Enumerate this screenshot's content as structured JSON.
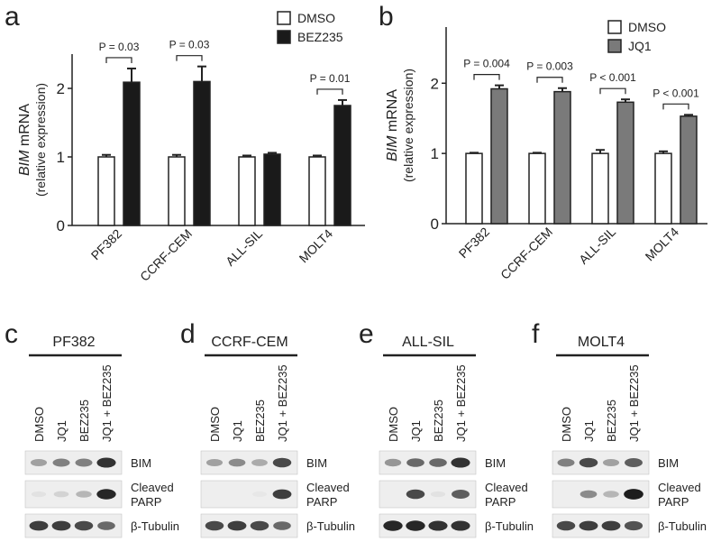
{
  "chart_data": [
    {
      "type": "bar",
      "panel": "a",
      "ylabel": {
        "italic": "BIM",
        "text": "mRNA"
      },
      "ylabel2": "(relative expression)",
      "categories": [
        "PF382",
        "CCRF-CEM",
        "ALL-SIL",
        "MOLT4"
      ],
      "series": [
        {
          "name": "DMSO",
          "color": "#ffffff",
          "values": [
            1.0,
            1.0,
            1.0,
            1.0
          ],
          "errors": [
            0.03,
            0.03,
            0.02,
            0.02
          ]
        },
        {
          "name": "BEZ235",
          "color": "#1a1a1a",
          "values": [
            2.09,
            2.1,
            1.04,
            1.75
          ],
          "errors": [
            0.2,
            0.22,
            0.02,
            0.08
          ]
        }
      ],
      "annotations": [
        "P = 0.03",
        "P = 0.03",
        null,
        "P = 0.01"
      ],
      "ylim": [
        0,
        2.5
      ],
      "yticks": [
        0,
        1,
        2
      ],
      "legend": "upper right"
    },
    {
      "type": "bar",
      "panel": "b",
      "ylabel": {
        "italic": "BIM",
        "text": "mRNA"
      },
      "ylabel2": "(relative expression)",
      "categories": [
        "PF382",
        "CCRF-CEM",
        "ALL-SIL",
        "MOLT4"
      ],
      "series": [
        {
          "name": "DMSO",
          "color": "#ffffff",
          "values": [
            1.0,
            1.0,
            1.0,
            1.0
          ],
          "errors": [
            0.01,
            0.01,
            0.05,
            0.03
          ]
        },
        {
          "name": "JQ1",
          "color": "#7a7a7a",
          "values": [
            1.92,
            1.88,
            1.73,
            1.53
          ],
          "errors": [
            0.05,
            0.05,
            0.04,
            0.02
          ]
        }
      ],
      "annotations": [
        "P = 0.004",
        "P = 0.003",
        "P < 0.001",
        "P < 0.001"
      ],
      "ylim": [
        0,
        2.8
      ],
      "yticks": [
        0,
        1,
        2
      ],
      "legend": "upper right"
    }
  ],
  "blots": [
    {
      "panel": "c",
      "title": "PF382"
    },
    {
      "panel": "d",
      "title": "CCRF-CEM"
    },
    {
      "panel": "e",
      "title": "ALL-SIL"
    },
    {
      "panel": "f",
      "title": "MOLT4"
    }
  ],
  "lanes": [
    "DMSO",
    "JQ1",
    "BEZ235",
    "JQ1 + BEZ235"
  ],
  "row_labels": [
    [
      "BIM"
    ],
    [
      "Cleaved",
      "PARP"
    ],
    [
      "β-Tubulin"
    ]
  ]
}
